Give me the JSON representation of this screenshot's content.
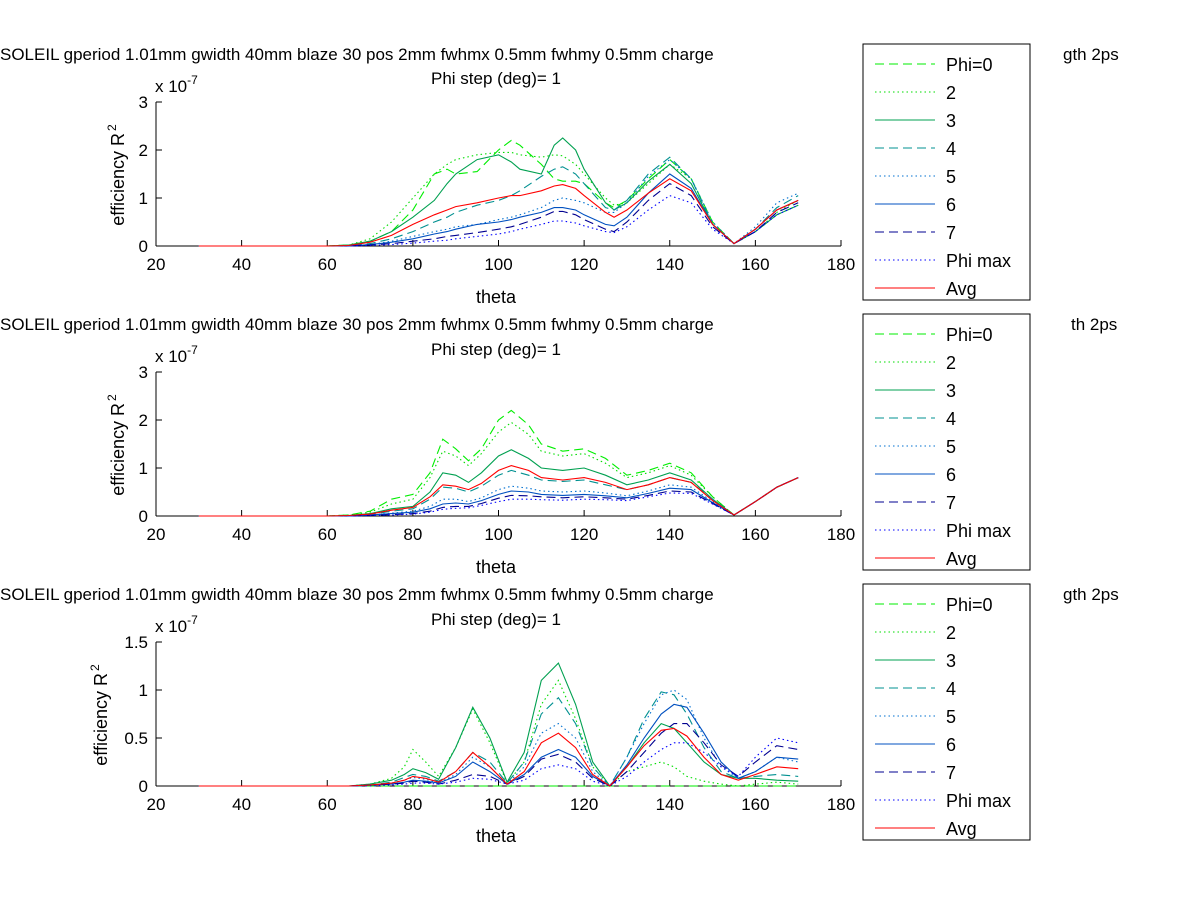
{
  "colors": {
    "phi0": "#00ee00",
    "p2": "#00dd00",
    "p3": "#00a050",
    "p4": "#009090",
    "p5": "#0070d0",
    "p6": "#0050c0",
    "p7": "#000090",
    "phimax": "#0000ff",
    "avg": "#ff0000"
  },
  "chart_data": [
    {
      "type": "line",
      "title_line1": "SOLEIL gperiod 1.01mm gwidth 40mm blaze 30 pos 2mm fwhmx 0.5mm fwhmy 0.5mm charge",
      "title_line1_tail": "gth 2ps",
      "title_line2": "Phi step (deg)= 1",
      "xlabel": "theta",
      "ylabel": "efficiency R",
      "ylabel_sup": "2",
      "exponent_label": "x 10",
      "exponent_sup": "-7",
      "xlim": [
        20,
        180
      ],
      "ylim": [
        0,
        3
      ],
      "xticks": [
        "20",
        "40",
        "60",
        "80",
        "100",
        "120",
        "140",
        "160",
        "180"
      ],
      "yticks": [
        "0",
        "1",
        "2",
        "3"
      ],
      "legend": [
        "Phi=0",
        "2",
        "3",
        "4",
        "5",
        "6",
        "7",
        "Phi max",
        "Avg"
      ],
      "x": [
        30,
        60,
        65,
        70,
        75,
        80,
        85,
        88,
        90,
        95,
        100,
        103,
        105,
        110,
        113,
        115,
        118,
        120,
        125,
        127,
        130,
        135,
        140,
        145,
        150,
        155,
        160,
        165,
        170
      ],
      "series": [
        {
          "name": "Phi=0",
          "values": [
            0,
            0,
            0.02,
            0.1,
            0.3,
            0.75,
            1.5,
            1.6,
            1.5,
            1.55,
            2.0,
            2.2,
            2.1,
            1.7,
            1.4,
            1.35,
            1.35,
            1.3,
            0.9,
            0.8,
            0.95,
            1.4,
            1.8,
            1.4,
            0.5,
            0.05,
            0.3,
            0.65,
            0.85
          ]
        },
        {
          "name": "2",
          "values": [
            0,
            0,
            0.02,
            0.15,
            0.5,
            1.0,
            1.5,
            1.7,
            1.8,
            1.9,
            1.95,
            1.95,
            1.9,
            1.85,
            1.9,
            1.88,
            1.7,
            1.5,
            1.0,
            0.85,
            0.9,
            1.3,
            1.7,
            1.4,
            0.5,
            0.05,
            0.3,
            0.7,
            0.95
          ]
        },
        {
          "name": "3",
          "values": [
            0,
            0,
            0.02,
            0.1,
            0.3,
            0.6,
            0.95,
            1.3,
            1.5,
            1.8,
            1.9,
            1.75,
            1.6,
            1.5,
            2.1,
            2.25,
            2.0,
            1.6,
            0.9,
            0.75,
            0.9,
            1.35,
            1.7,
            1.3,
            0.45,
            0.05,
            0.3,
            0.65,
            0.85
          ]
        },
        {
          "name": "4",
          "values": [
            0,
            0,
            0.01,
            0.05,
            0.15,
            0.3,
            0.5,
            0.6,
            0.7,
            0.85,
            0.95,
            1.05,
            1.15,
            1.45,
            1.6,
            1.65,
            1.5,
            1.3,
            0.8,
            0.75,
            0.95,
            1.5,
            1.85,
            1.4,
            0.45,
            0.05,
            0.35,
            0.8,
            1.05
          ]
        },
        {
          "name": "5",
          "values": [
            0,
            0,
            0.0,
            0.03,
            0.1,
            0.2,
            0.3,
            0.35,
            0.4,
            0.45,
            0.55,
            0.6,
            0.65,
            0.8,
            0.95,
            1.0,
            0.95,
            0.9,
            0.7,
            0.7,
            0.9,
            1.45,
            1.8,
            1.4,
            0.5,
            0.05,
            0.4,
            0.9,
            1.1
          ]
        },
        {
          "name": "6",
          "values": [
            0,
            0,
            0.0,
            0.03,
            0.08,
            0.15,
            0.25,
            0.3,
            0.35,
            0.45,
            0.5,
            0.55,
            0.6,
            0.7,
            0.8,
            0.8,
            0.75,
            0.65,
            0.45,
            0.42,
            0.6,
            1.1,
            1.5,
            1.2,
            0.45,
            0.05,
            0.35,
            0.75,
            0.95
          ]
        },
        {
          "name": "7",
          "values": [
            0,
            0,
            0.0,
            0.02,
            0.05,
            0.1,
            0.15,
            0.2,
            0.22,
            0.28,
            0.35,
            0.4,
            0.45,
            0.6,
            0.72,
            0.72,
            0.65,
            0.55,
            0.35,
            0.3,
            0.5,
            0.95,
            1.3,
            1.05,
            0.4,
            0.05,
            0.3,
            0.7,
            0.9
          ]
        },
        {
          "name": "Phi max",
          "values": [
            0,
            0,
            0.0,
            0.01,
            0.03,
            0.06,
            0.1,
            0.12,
            0.15,
            0.2,
            0.25,
            0.3,
            0.35,
            0.45,
            0.52,
            0.52,
            0.48,
            0.42,
            0.3,
            0.28,
            0.4,
            0.75,
            1.05,
            0.9,
            0.35,
            0.05,
            0.3,
            0.65,
            0.85
          ]
        },
        {
          "name": "Avg",
          "values": [
            0,
            0,
            0.01,
            0.08,
            0.22,
            0.45,
            0.65,
            0.75,
            0.82,
            0.9,
            1.0,
            1.05,
            1.05,
            1.15,
            1.25,
            1.28,
            1.2,
            1.05,
            0.7,
            0.6,
            0.75,
            1.1,
            1.4,
            1.15,
            0.45,
            0.05,
            0.35,
            0.75,
            0.95
          ]
        }
      ]
    },
    {
      "type": "line",
      "title_line1": "SOLEIL gperiod 1.01mm gwidth 40mm blaze 30 pos 2mm fwhmx 0.5mm fwhmy 0.5mm charge",
      "title_line1_tail": "th 2ps",
      "title_line2": "Phi step (deg)= 1",
      "xlabel": "theta",
      "ylabel": "efficiency R",
      "ylabel_sup": "2",
      "exponent_label": "x 10",
      "exponent_sup": "-7",
      "xlim": [
        20,
        180
      ],
      "ylim": [
        0,
        3
      ],
      "xticks": [
        "20",
        "40",
        "60",
        "80",
        "100",
        "120",
        "140",
        "160",
        "180"
      ],
      "yticks": [
        "0",
        "1",
        "2",
        "3"
      ],
      "legend": [
        "Phi=0",
        "2",
        "3",
        "4",
        "5",
        "6",
        "7",
        "Phi max",
        "Avg"
      ],
      "x": [
        30,
        60,
        65,
        70,
        75,
        80,
        84,
        87,
        90,
        93,
        96,
        100,
        103,
        107,
        110,
        115,
        120,
        125,
        130,
        135,
        140,
        145,
        150,
        155,
        160,
        165,
        170
      ],
      "series": [
        {
          "name": "Phi=0",
          "values": [
            0,
            0,
            0.02,
            0.1,
            0.35,
            0.45,
            0.9,
            1.6,
            1.4,
            1.15,
            1.4,
            2.0,
            2.2,
            1.9,
            1.5,
            1.35,
            1.4,
            1.2,
            0.85,
            0.95,
            1.1,
            0.9,
            0.4,
            0.02,
            0.3,
            0.6,
            0.8
          ]
        },
        {
          "name": "2",
          "values": [
            0,
            0,
            0.02,
            0.08,
            0.25,
            0.35,
            0.8,
            1.35,
            1.25,
            1.05,
            1.3,
            1.75,
            1.95,
            1.7,
            1.35,
            1.25,
            1.3,
            1.1,
            0.8,
            0.9,
            1.05,
            0.85,
            0.4,
            0.02,
            0.3,
            0.6,
            0.8
          ]
        },
        {
          "name": "3",
          "values": [
            0,
            0,
            0.01,
            0.05,
            0.15,
            0.2,
            0.5,
            0.9,
            0.85,
            0.7,
            0.9,
            1.25,
            1.38,
            1.2,
            1.0,
            0.95,
            1.0,
            0.85,
            0.65,
            0.75,
            0.9,
            0.75,
            0.35,
            0.02,
            0.3,
            0.6,
            0.8
          ]
        },
        {
          "name": "4",
          "values": [
            0,
            0,
            0.01,
            0.03,
            0.1,
            0.15,
            0.35,
            0.6,
            0.58,
            0.5,
            0.62,
            0.85,
            0.95,
            0.85,
            0.75,
            0.72,
            0.75,
            0.65,
            0.55,
            0.65,
            0.8,
            0.7,
            0.35,
            0.02,
            0.3,
            0.6,
            0.8
          ]
        },
        {
          "name": "5",
          "values": [
            0,
            0,
            0.0,
            0.02,
            0.06,
            0.1,
            0.2,
            0.35,
            0.35,
            0.3,
            0.38,
            0.55,
            0.62,
            0.58,
            0.52,
            0.5,
            0.52,
            0.48,
            0.42,
            0.52,
            0.65,
            0.6,
            0.3,
            0.02,
            0.3,
            0.6,
            0.8
          ]
        },
        {
          "name": "6",
          "values": [
            0,
            0,
            0.0,
            0.02,
            0.05,
            0.08,
            0.15,
            0.25,
            0.27,
            0.25,
            0.32,
            0.45,
            0.52,
            0.5,
            0.45,
            0.43,
            0.45,
            0.42,
            0.38,
            0.47,
            0.58,
            0.55,
            0.28,
            0.02,
            0.3,
            0.6,
            0.8
          ]
        },
        {
          "name": "7",
          "values": [
            0,
            0,
            0.0,
            0.01,
            0.03,
            0.05,
            0.1,
            0.18,
            0.2,
            0.2,
            0.26,
            0.37,
            0.43,
            0.42,
            0.4,
            0.38,
            0.4,
            0.38,
            0.35,
            0.43,
            0.52,
            0.5,
            0.26,
            0.02,
            0.3,
            0.6,
            0.8
          ]
        },
        {
          "name": "Phi max",
          "values": [
            0,
            0,
            0.0,
            0.01,
            0.02,
            0.04,
            0.08,
            0.14,
            0.16,
            0.17,
            0.22,
            0.3,
            0.35,
            0.35,
            0.34,
            0.33,
            0.35,
            0.34,
            0.32,
            0.4,
            0.48,
            0.47,
            0.25,
            0.02,
            0.3,
            0.6,
            0.8
          ]
        },
        {
          "name": "Avg",
          "values": [
            0,
            0,
            0.01,
            0.04,
            0.12,
            0.18,
            0.4,
            0.65,
            0.62,
            0.55,
            0.68,
            0.95,
            1.05,
            0.95,
            0.8,
            0.75,
            0.8,
            0.7,
            0.55,
            0.65,
            0.8,
            0.7,
            0.32,
            0.02,
            0.3,
            0.6,
            0.8
          ]
        }
      ]
    },
    {
      "type": "line",
      "title_line1": "SOLEIL gperiod 1.01mm gwidth 40mm blaze 30 pos 2mm fwhmx 0.5mm fwhmy 0.5mm charge",
      "title_line1_tail": "gth 2ps",
      "title_line2": "Phi step (deg)= 1",
      "xlabel": "theta",
      "ylabel": "efficiency R",
      "ylabel_sup": "2",
      "exponent_label": "x 10",
      "exponent_sup": "-7",
      "xlim": [
        20,
        180
      ],
      "ylim": [
        0,
        1.5
      ],
      "xticks": [
        "20",
        "40",
        "60",
        "80",
        "100",
        "120",
        "140",
        "160",
        "180"
      ],
      "yticks": [
        "0",
        "0.5",
        "1",
        "1.5"
      ],
      "legend": [
        "Phi=0",
        "2",
        "3",
        "4",
        "5",
        "6",
        "7",
        "Phi max",
        "Avg"
      ],
      "x": [
        30,
        60,
        65,
        70,
        75,
        78,
        80,
        83,
        86,
        90,
        94,
        98,
        102,
        106,
        110,
        114,
        118,
        122,
        126,
        130,
        134,
        138,
        141,
        144,
        148,
        152,
        156,
        160,
        165,
        170
      ],
      "series": [
        {
          "name": "Phi=0",
          "values": [
            0,
            0,
            0,
            0,
            0,
            0,
            0,
            0,
            0,
            0,
            0,
            0,
            0,
            0,
            0,
            0,
            0,
            0,
            0,
            0,
            0,
            0,
            0,
            0,
            0,
            0,
            0,
            0,
            0,
            0
          ]
        },
        {
          "name": "2",
          "values": [
            0,
            0,
            0.0,
            0.02,
            0.08,
            0.2,
            0.38,
            0.25,
            0.1,
            0.4,
            0.8,
            0.45,
            0.03,
            0.25,
            0.85,
            1.1,
            0.7,
            0.2,
            0.0,
            0.15,
            0.2,
            0.25,
            0.2,
            0.1,
            0.05,
            0.02,
            0.0,
            0.02,
            0.04,
            0.02
          ]
        },
        {
          "name": "3",
          "values": [
            0,
            0,
            0.0,
            0.02,
            0.06,
            0.12,
            0.18,
            0.14,
            0.07,
            0.4,
            0.82,
            0.5,
            0.04,
            0.35,
            1.1,
            1.28,
            0.85,
            0.25,
            0.0,
            0.2,
            0.45,
            0.65,
            0.6,
            0.45,
            0.25,
            0.12,
            0.08,
            0.08,
            0.06,
            0.05
          ]
        },
        {
          "name": "4",
          "values": [
            0,
            0,
            0.0,
            0.01,
            0.04,
            0.09,
            0.12,
            0.1,
            0.05,
            0.15,
            0.35,
            0.25,
            0.03,
            0.25,
            0.75,
            0.92,
            0.65,
            0.2,
            0.0,
            0.3,
            0.7,
            0.98,
            0.95,
            0.75,
            0.4,
            0.15,
            0.08,
            0.1,
            0.12,
            0.1
          ]
        },
        {
          "name": "5",
          "values": [
            0,
            0,
            0.0,
            0.01,
            0.03,
            0.06,
            0.09,
            0.07,
            0.03,
            0.12,
            0.3,
            0.2,
            0.02,
            0.2,
            0.55,
            0.65,
            0.5,
            0.15,
            0.0,
            0.3,
            0.65,
            0.95,
            1.0,
            0.9,
            0.5,
            0.2,
            0.08,
            0.15,
            0.3,
            0.25
          ]
        },
        {
          "name": "6",
          "values": [
            0,
            0,
            0.0,
            0.01,
            0.02,
            0.04,
            0.06,
            0.05,
            0.03,
            0.1,
            0.25,
            0.15,
            0.02,
            0.12,
            0.3,
            0.38,
            0.3,
            0.1,
            0.0,
            0.22,
            0.5,
            0.75,
            0.85,
            0.82,
            0.55,
            0.25,
            0.08,
            0.15,
            0.3,
            0.28
          ]
        },
        {
          "name": "7",
          "values": [
            0,
            0,
            0.0,
            0.01,
            0.02,
            0.03,
            0.05,
            0.04,
            0.02,
            0.06,
            0.12,
            0.1,
            0.02,
            0.1,
            0.28,
            0.33,
            0.25,
            0.08,
            0.0,
            0.15,
            0.35,
            0.55,
            0.65,
            0.65,
            0.45,
            0.22,
            0.1,
            0.25,
            0.42,
            0.38
          ]
        },
        {
          "name": "Phi max",
          "values": [
            0,
            0,
            0.0,
            0.0,
            0.01,
            0.02,
            0.03,
            0.03,
            0.02,
            0.04,
            0.08,
            0.07,
            0.02,
            0.06,
            0.18,
            0.22,
            0.18,
            0.05,
            0.0,
            0.1,
            0.25,
            0.38,
            0.45,
            0.45,
            0.35,
            0.2,
            0.1,
            0.3,
            0.5,
            0.45
          ]
        },
        {
          "name": "Avg",
          "values": [
            0,
            0,
            0.0,
            0.01,
            0.03,
            0.06,
            0.1,
            0.08,
            0.04,
            0.15,
            0.35,
            0.2,
            0.02,
            0.15,
            0.45,
            0.55,
            0.4,
            0.12,
            0.0,
            0.2,
            0.42,
            0.58,
            0.6,
            0.52,
            0.3,
            0.12,
            0.06,
            0.12,
            0.2,
            0.18
          ]
        }
      ]
    }
  ]
}
